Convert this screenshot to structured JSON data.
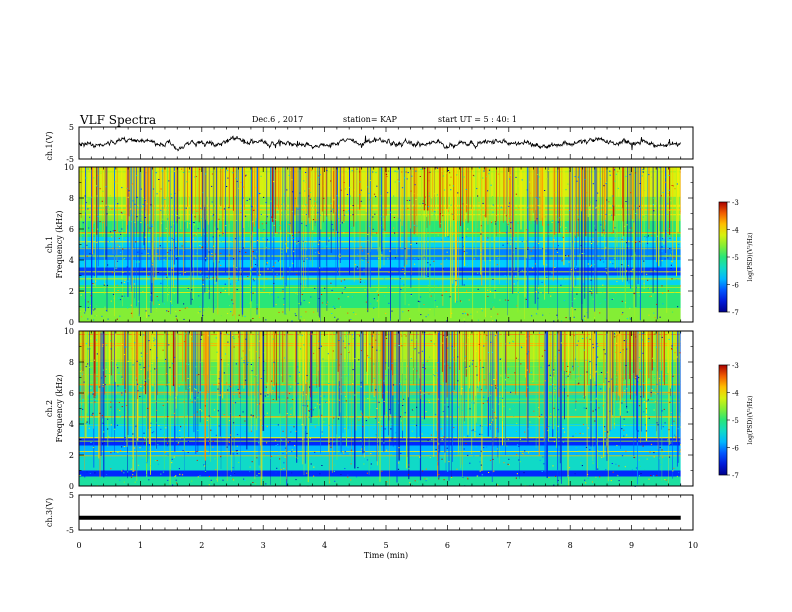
{
  "header": {
    "title": "VLF Spectra",
    "date": "Dec.6 , 2017",
    "station": "station= KAP",
    "start": "start UT = 5 : 40: 1"
  },
  "chart_data": [
    {
      "type": "line",
      "panel": "ch.1 waveform",
      "ylabel": "ch.1(V)",
      "ylim": [
        -5,
        5
      ],
      "yticks": [
        "5",
        "-5"
      ],
      "xlim": [
        0,
        10
      ],
      "series": [
        {
          "values_described": "noisy waveform around 0 V, amplitude about ±1 V with occasional ±2 V spikes, 0–9.8 min"
        }
      ]
    },
    {
      "type": "heatmap",
      "panel": "ch.1 spectrogram",
      "ylabel": "ch.1 Frequency (kHz)",
      "ylim": [
        0,
        10
      ],
      "yticks": [
        "0",
        "2",
        "4",
        "6",
        "8",
        "10"
      ],
      "xlim": [
        0,
        9.8
      ],
      "bands": [
        {
          "from": 0,
          "to": 0.9,
          "level": -4.6
        },
        {
          "from": 0.9,
          "to": 2.4,
          "level": -5.0
        },
        {
          "from": 2.4,
          "to": 3.0,
          "level": -5.6
        },
        {
          "from": 3.0,
          "to": 3.5,
          "level": -6.3
        },
        {
          "from": 3.5,
          "to": 4.0,
          "level": -5.7
        },
        {
          "from": 4.0,
          "to": 4.8,
          "level": -6.0
        },
        {
          "from": 4.8,
          "to": 5.5,
          "level": -5.6
        },
        {
          "from": 5.5,
          "to": 6.5,
          "level": -5.0
        },
        {
          "from": 6.5,
          "to": 8.0,
          "level": -4.6
        },
        {
          "from": 8.0,
          "to": 10,
          "level": -4.2
        }
      ],
      "colorbar": {
        "label": "log(PSD)(V²/Hz)",
        "range": [
          -7,
          -3
        ],
        "ticks": [
          "-3",
          "-4",
          "-5",
          "-6",
          "-7"
        ]
      }
    },
    {
      "type": "heatmap",
      "panel": "ch.2 spectrogram",
      "ylabel": "ch.2 Frequency (kHz)",
      "ylim": [
        0,
        10
      ],
      "yticks": [
        "0",
        "2",
        "4",
        "6",
        "8",
        "10"
      ],
      "xlim": [
        0,
        9.8
      ],
      "bands": [
        {
          "from": 0,
          "to": 0.6,
          "level": -5.2
        },
        {
          "from": 0.6,
          "to": 1.0,
          "level": -6.4
        },
        {
          "from": 1.0,
          "to": 2.0,
          "level": -5.4
        },
        {
          "from": 2.0,
          "to": 2.6,
          "level": -5.8
        },
        {
          "from": 2.6,
          "to": 3.1,
          "level": -6.4
        },
        {
          "from": 3.1,
          "to": 4.0,
          "level": -5.6
        },
        {
          "from": 4.0,
          "to": 6.5,
          "level": -5.2
        },
        {
          "from": 6.5,
          "to": 8.0,
          "level": -4.8
        },
        {
          "from": 8.0,
          "to": 10,
          "level": -4.4
        }
      ],
      "colorbar": {
        "label": "log(PSD)(V²/Hz)",
        "range": [
          -7,
          -3
        ],
        "ticks": [
          "-3",
          "-4",
          "-5",
          "-6",
          "-7"
        ]
      }
    },
    {
      "type": "line",
      "panel": "ch.3 waveform",
      "ylabel": "ch.3(V)",
      "ylim": [
        -5,
        5
      ],
      "yticks": [
        "5",
        "-5"
      ],
      "xlim": [
        0,
        10
      ],
      "series": [
        {
          "values": [
            -1.5,
            -1.5
          ],
          "x": [
            0,
            9.8
          ]
        }
      ]
    }
  ],
  "xaxis": {
    "label": "Time (min)",
    "ticks": [
      "0",
      "1",
      "2",
      "3",
      "4",
      "5",
      "6",
      "7",
      "8",
      "9",
      "10"
    ]
  }
}
